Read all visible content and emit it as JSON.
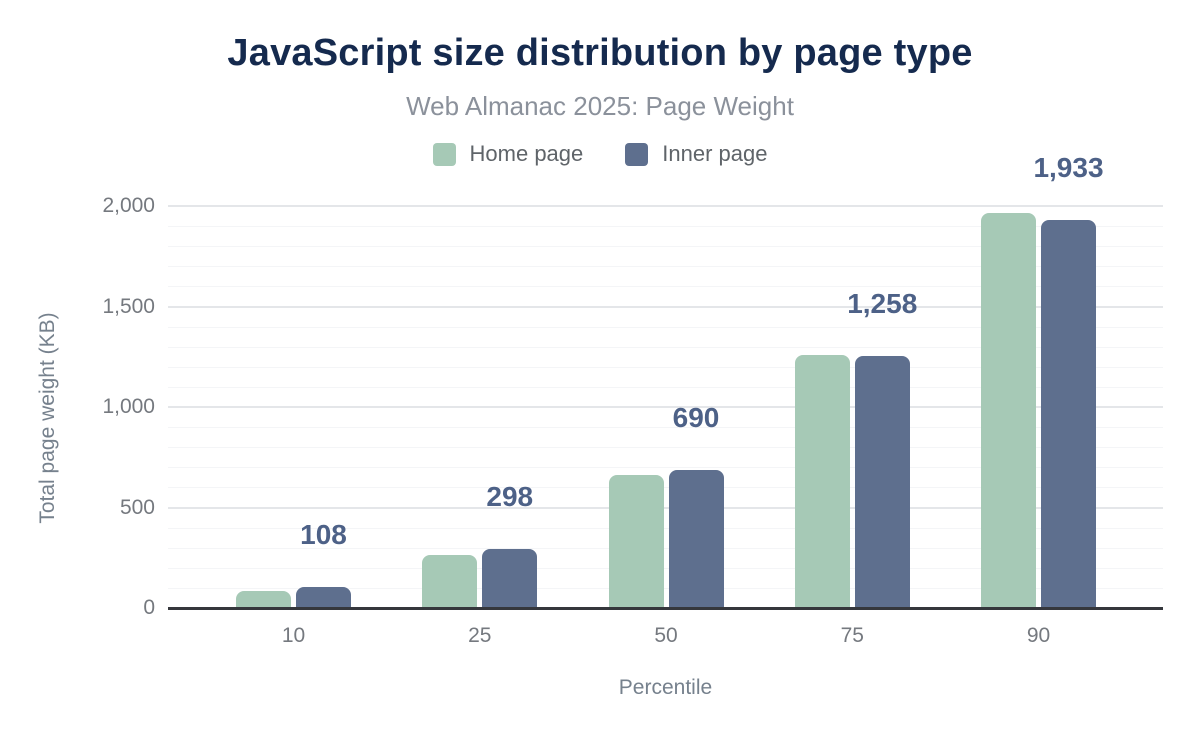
{
  "chart_data": {
    "type": "bar",
    "title": "JavaScript size distribution by page type",
    "subtitle": "Web Almanac 2025: Page Weight",
    "xlabel": "Percentile",
    "ylabel": "Total page weight (KB)",
    "categories": [
      "10",
      "25",
      "50",
      "75",
      "90"
    ],
    "series": [
      {
        "name": "Home page",
        "color": "#a6c9b6",
        "values": [
          88,
          268,
          665,
          1262,
          1970
        ],
        "value_labels": null
      },
      {
        "name": "Inner page",
        "color": "#5e6f8e",
        "values": [
          108,
          298,
          690,
          1258,
          1933
        ],
        "value_labels": [
          "108",
          "298",
          "690",
          "1,258",
          "1,933"
        ]
      }
    ],
    "ylim": [
      0,
      2000
    ],
    "yticks": [
      {
        "value": 0,
        "label": "0"
      },
      {
        "value": 500,
        "label": "500"
      },
      {
        "value": 1000,
        "label": "1,000"
      },
      {
        "value": 1500,
        "label": "1,500"
      },
      {
        "value": 2000,
        "label": "2,000"
      }
    ],
    "grid": {
      "major_every": 500,
      "minor_every": 100,
      "shown": true
    },
    "legend_position": "top",
    "colors": {
      "title": "#152a4e",
      "subtitle": "#8b919b",
      "tick_text": "#75797f",
      "axis_title_text": "#76818d",
      "value_label": "#4d6187",
      "axis_line": "#35373c",
      "grid_major": "#e4e6e9",
      "grid_minor": "#f4f5f7",
      "background": "#ffffff"
    }
  }
}
